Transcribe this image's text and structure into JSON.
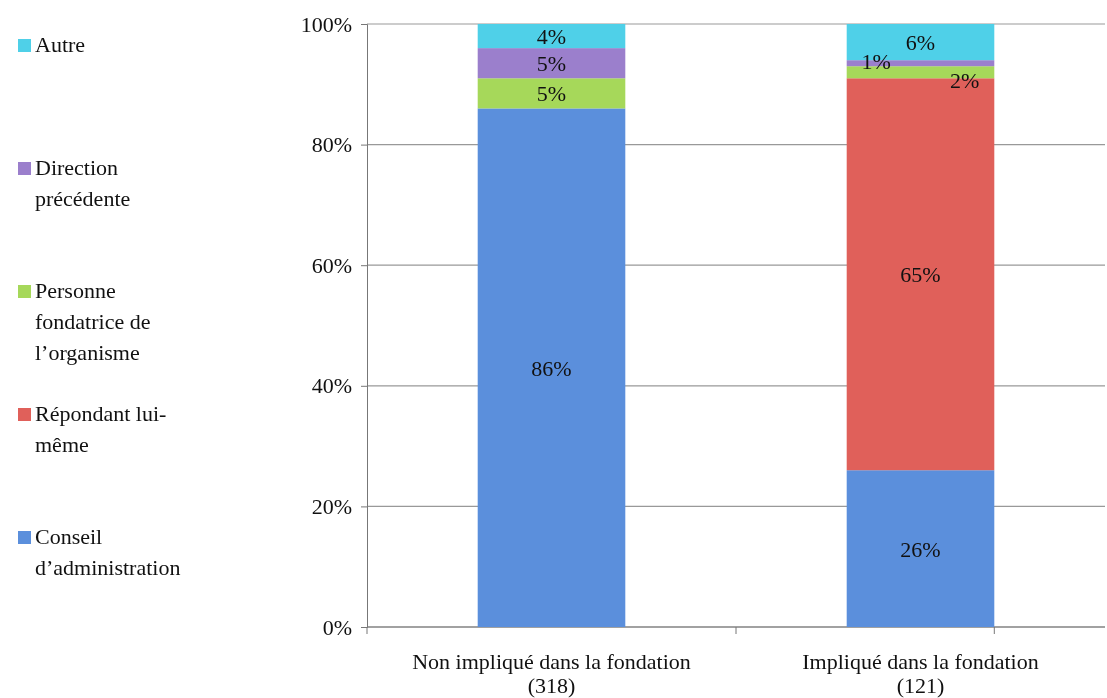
{
  "chart_data": {
    "type": "bar",
    "stacked": true,
    "categories": [
      "Non impliqué dans la fondation\n(318)",
      "Impliqué dans la fondation\n(121)"
    ],
    "series": [
      {
        "name": "Conseil d’administration",
        "color": "#5b8fdc",
        "values": [
          86,
          26
        ],
        "value_labels": [
          "86%",
          "26%"
        ]
      },
      {
        "name": "Répondant lui-même",
        "color": "#e0605a",
        "values": [
          0,
          65
        ],
        "value_labels": [
          null,
          "65%"
        ]
      },
      {
        "name": "Personne fondatrice de l’organisme",
        "color": "#a6d85a",
        "values": [
          5,
          2
        ],
        "value_labels": [
          "5%",
          "2%"
        ]
      },
      {
        "name": "Direction précédente",
        "color": "#9b7fcc",
        "values": [
          5,
          1
        ],
        "value_labels": [
          "5%",
          "1%"
        ]
      },
      {
        "name": "Autre",
        "color": "#4fd0e8",
        "values": [
          4,
          6
        ],
        "value_labels": [
          "4%",
          "6%"
        ]
      }
    ],
    "ylim": [
      0,
      100
    ],
    "yticks": [
      {
        "value": 0,
        "label": "0%"
      },
      {
        "value": 20,
        "label": "20%"
      },
      {
        "value": 40,
        "label": "40%"
      },
      {
        "value": 60,
        "label": "60%"
      },
      {
        "value": 80,
        "label": "80%"
      },
      {
        "value": 100,
        "label": "100%"
      }
    ],
    "grid": "y",
    "legend": "left"
  }
}
